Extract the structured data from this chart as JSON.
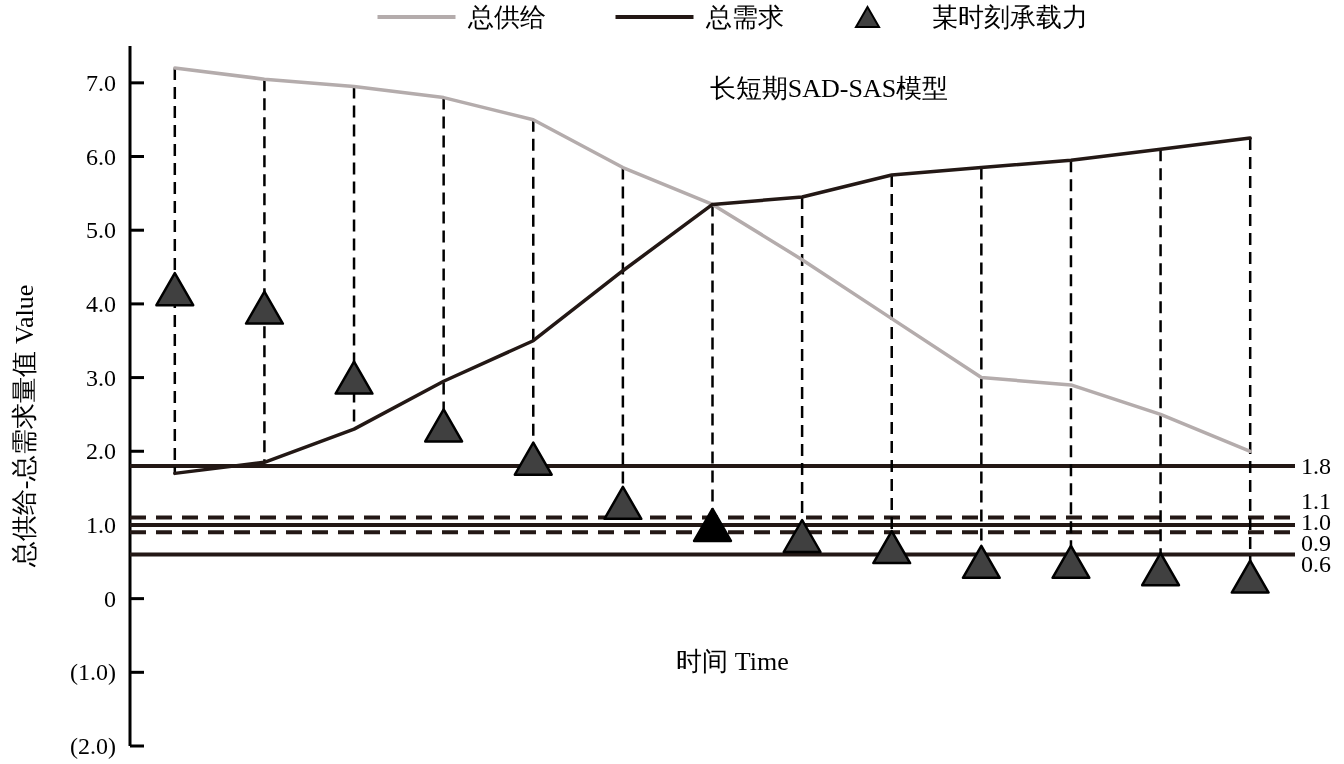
{
  "chart_data": {
    "type": "line",
    "title": "长短期SAD-SAS模型",
    "xlabel": "时间 Time",
    "ylabel": "总供给-总需求量值 Value",
    "categories": [
      null,
      null,
      null,
      null,
      null,
      null,
      null,
      null,
      null,
      null,
      null,
      null,
      null
    ],
    "series": [
      {
        "name": "总供给",
        "color": "#b4acac",
        "values": [
          7.2,
          7.05,
          6.95,
          6.8,
          6.5,
          5.85,
          5.35,
          4.6,
          3.8,
          3.0,
          2.9,
          2.5,
          2.0
        ]
      },
      {
        "name": "总需求",
        "color": "#231815",
        "values": [
          1.7,
          1.85,
          2.3,
          2.95,
          3.5,
          4.45,
          5.35,
          5.45,
          5.75,
          5.85,
          5.95,
          6.1,
          6.25
        ]
      },
      {
        "name": "某时刻承载力",
        "type": "scatter",
        "marker": "triangle",
        "color": "#404040",
        "colors": [
          "#404040",
          "#404040",
          "#404040",
          "#404040",
          "#404040",
          "#404040",
          "#000000",
          "#404040",
          "#404040",
          "#404040",
          "#404040",
          "#404040",
          "#404040"
        ],
        "values": [
          4.2,
          3.95,
          3.0,
          2.35,
          1.9,
          1.3,
          1.0,
          0.85,
          0.7,
          0.5,
          0.5,
          0.4,
          0.3
        ],
        "errors": [
          [
            1.7,
            7.2
          ],
          [
            1.85,
            7.05
          ],
          [
            2.3,
            6.95
          ],
          [
            2.35,
            6.8
          ],
          [
            1.9,
            6.5
          ],
          [
            1.3,
            5.85
          ],
          [
            1.0,
            5.35
          ],
          [
            0.85,
            5.45
          ],
          [
            0.7,
            5.75
          ],
          [
            0.5,
            5.85
          ],
          [
            0.5,
            5.95
          ],
          [
            0.4,
            6.1
          ],
          [
            0.3,
            6.25
          ]
        ]
      }
    ],
    "ylim": [
      -2,
      7.5
    ],
    "yticks": [
      {
        "value": 7,
        "label": "7.0"
      },
      {
        "value": 6,
        "label": "6.0"
      },
      {
        "value": 5,
        "label": "5.0"
      },
      {
        "value": 4,
        "label": "4.0"
      },
      {
        "value": 3,
        "label": "3.0"
      },
      {
        "value": 2,
        "label": "2.0"
      },
      {
        "value": 1,
        "label": "1.0"
      },
      0,
      {
        "value": -1,
        "label": "(1.0)"
      },
      {
        "value": -2,
        "label": "(2.0)"
      }
    ],
    "ref_lines": [
      {
        "axis": "y",
        "value": 1.8,
        "label": "1.8",
        "color": "#231815",
        "line_style": "solid"
      },
      {
        "axis": "y",
        "value": 1.1,
        "label": "1.1",
        "color": "#231815",
        "line_style": "dashed"
      },
      {
        "axis": "y",
        "value": 1.0,
        "label": "1.0",
        "color": "#231815",
        "line_style": "solid"
      },
      {
        "axis": "y",
        "value": 0.9,
        "label": "0.9",
        "color": "#231815",
        "line_style": "dashed"
      },
      {
        "axis": "y",
        "value": 0.6,
        "label": "0.6",
        "color": "#231815",
        "line_style": "solid"
      }
    ],
    "legend": "top",
    "tick_labels": "y"
  }
}
